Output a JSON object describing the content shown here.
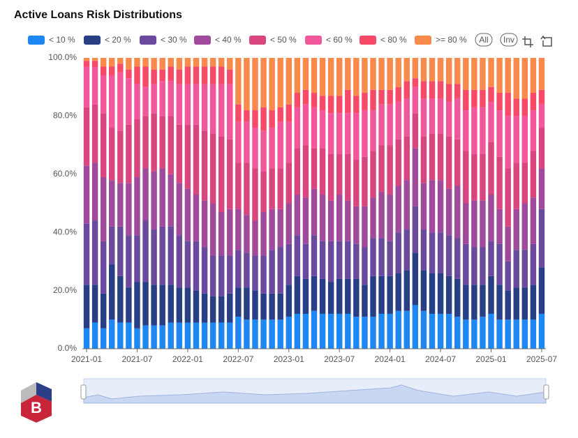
{
  "chart_data": {
    "type": "stacked_bar",
    "title": "Active Loans Risk Distributions",
    "legend_buttons": [
      "All",
      "Inv"
    ],
    "categories": [
      "2021-01",
      null,
      null,
      null,
      null,
      null,
      "2021-07",
      null,
      null,
      null,
      null,
      null,
      "2022-01",
      null,
      null,
      null,
      null,
      null,
      "2022-07",
      null,
      null,
      null,
      null,
      null,
      "2023-01",
      null,
      null,
      null,
      null,
      null,
      "2023-07",
      null,
      null,
      null,
      null,
      null,
      "2024-01",
      null,
      null,
      null,
      null,
      null,
      "2024-07",
      null,
      null,
      null,
      null,
      null,
      "2025-01",
      null,
      null,
      null,
      null,
      null,
      "2025-07"
    ],
    "ylim": [
      0,
      100
    ],
    "yticks": [
      {
        "value": 0,
        "label": "0.0%"
      },
      {
        "value": 20,
        "label": "20.0%"
      },
      {
        "value": 40,
        "label": "40.0%"
      },
      {
        "value": 60,
        "label": "60.0%"
      },
      {
        "value": 80,
        "label": "80.0%"
      },
      {
        "value": 100,
        "label": "100.0%"
      }
    ],
    "grid": false,
    "legend": "top",
    "series": [
      {
        "name": "< 10 %",
        "color": "#1d88f4",
        "values": [
          7,
          9,
          7,
          10,
          9,
          9,
          7,
          8,
          8,
          8,
          9,
          9,
          9,
          9,
          9,
          9,
          9,
          9,
          11,
          10,
          10,
          10,
          10,
          10,
          11,
          12,
          12,
          13,
          12,
          12,
          12,
          12,
          11,
          11,
          11,
          12,
          12,
          13,
          13,
          15,
          13,
          12,
          12,
          12,
          11,
          10,
          10,
          11,
          12,
          10,
          10,
          10,
          10,
          10,
          12
        ]
      },
      {
        "name": "< 20 %",
        "color": "#283f86",
        "values": [
          15,
          13,
          12,
          19,
          16,
          12,
          16,
          15,
          14,
          14,
          13,
          12,
          12,
          11,
          10,
          9,
          9,
          10,
          10,
          11,
          10,
          9,
          9,
          9,
          11,
          13,
          12,
          12,
          12,
          11,
          12,
          12,
          13,
          11,
          14,
          13,
          13,
          13,
          14,
          18,
          14,
          14,
          14,
          13,
          13,
          12,
          12,
          11,
          13,
          12,
          10,
          11,
          11,
          12,
          16
        ]
      },
      {
        "name": "< 30 %",
        "color": "#6b4a9d",
        "values": [
          21,
          22,
          18,
          13,
          17,
          18,
          16,
          21,
          19,
          20,
          20,
          18,
          16,
          17,
          16,
          14,
          14,
          13,
          13,
          12,
          12,
          13,
          15,
          16,
          14,
          14,
          12,
          14,
          13,
          14,
          13,
          13,
          12,
          13,
          13,
          13,
          12,
          14,
          14,
          16,
          14,
          14,
          14,
          14,
          14,
          14,
          13,
          13,
          12,
          14,
          10,
          13,
          13,
          14,
          20
        ]
      },
      {
        "name": "< 40 %",
        "color": "#a04a9c",
        "values": [
          20,
          20,
          22,
          16,
          15,
          18,
          20,
          18,
          20,
          20,
          18,
          18,
          18,
          16,
          16,
          18,
          15,
          16,
          14,
          13,
          12,
          15,
          14,
          13,
          14,
          14,
          16,
          16,
          16,
          14,
          16,
          14,
          13,
          14,
          14,
          16,
          16,
          16,
          17,
          20,
          16,
          18,
          18,
          16,
          18,
          14,
          16,
          16,
          16,
          12,
          12,
          14,
          16,
          16,
          14
        ]
      },
      {
        "name": "< 50 %",
        "color": "#d9457e",
        "values": [
          20,
          20,
          22,
          18,
          18,
          20,
          20,
          18,
          20,
          18,
          20,
          20,
          22,
          24,
          24,
          24,
          26,
          24,
          16,
          18,
          18,
          14,
          14,
          14,
          14,
          16,
          18,
          14,
          16,
          16,
          14,
          16,
          16,
          17,
          16,
          16,
          17,
          16,
          15,
          12,
          16,
          16,
          16,
          18,
          16,
          18,
          16,
          16,
          18,
          18,
          20,
          16,
          14,
          16,
          14
        ]
      },
      {
        "name": "< 60 %",
        "color": "#f2569b",
        "values": [
          14,
          13,
          13,
          18,
          20,
          16,
          12,
          10,
          10,
          12,
          12,
          14,
          14,
          14,
          16,
          17,
          18,
          19,
          14,
          14,
          14,
          14,
          14,
          16,
          14,
          14,
          14,
          14,
          13,
          14,
          14,
          14,
          16,
          16,
          14,
          14,
          14,
          13,
          13,
          9,
          13,
          12,
          12,
          12,
          14,
          14,
          16,
          16,
          14,
          16,
          18,
          16,
          16,
          14,
          8
        ]
      },
      {
        "name": "< 80 %",
        "color": "#f64a68",
        "values": [
          2,
          2,
          3,
          3,
          3,
          3,
          6,
          7,
          5,
          4,
          5,
          5,
          6,
          6,
          6,
          6,
          6,
          5,
          6,
          4,
          6,
          8,
          6,
          5,
          6,
          5,
          5,
          5,
          5,
          6,
          6,
          8,
          6,
          6,
          7,
          5,
          5,
          5,
          6,
          3,
          6,
          6,
          6,
          6,
          5,
          7,
          6,
          6,
          5,
          6,
          8,
          6,
          6,
          6,
          5
        ]
      },
      {
        "name": ">= 80 %",
        "color": "#f88a4b",
        "values": [
          1,
          1,
          3,
          3,
          2,
          4,
          3,
          3,
          4,
          4,
          3,
          4,
          3,
          3,
          3,
          3,
          3,
          4,
          16,
          18,
          18,
          17,
          18,
          17,
          16,
          12,
          11,
          12,
          13,
          13,
          13,
          11,
          13,
          12,
          11,
          11,
          11,
          10,
          8,
          7,
          8,
          8,
          8,
          9,
          9,
          11,
          11,
          11,
          10,
          12,
          12,
          14,
          14,
          12,
          11
        ]
      }
    ]
  }
}
